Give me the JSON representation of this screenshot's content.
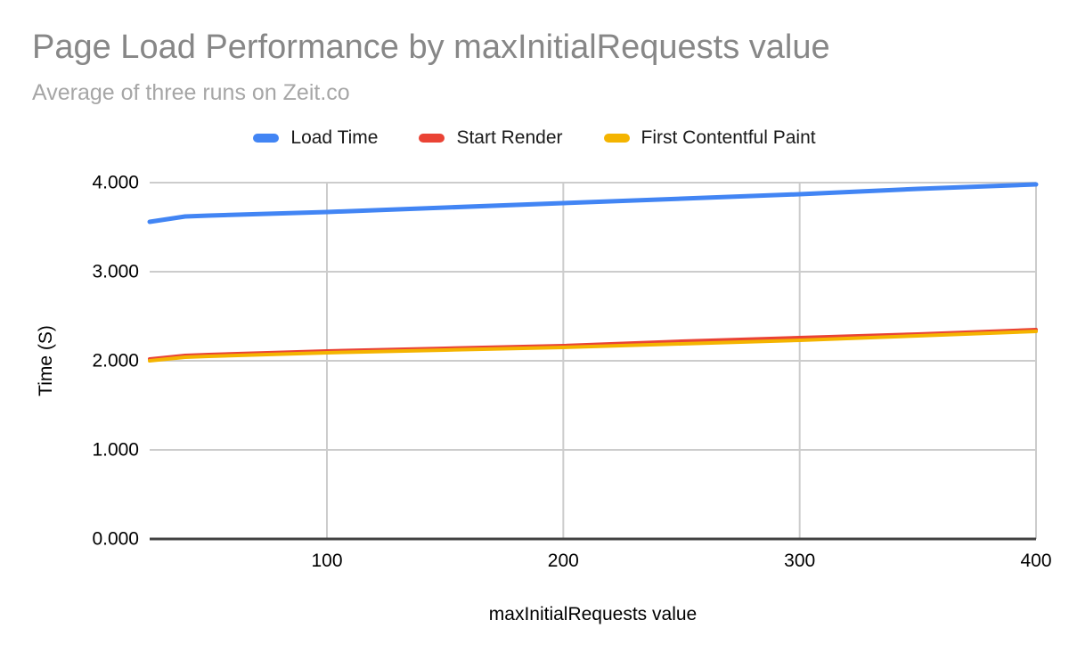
{
  "chart_data": {
    "type": "line",
    "title": "Page Load Performance by maxInitialRequests value",
    "subtitle": "Average of three runs on Zeit.co",
    "xlabel": "maxInitialRequests value",
    "ylabel": "Time (S)",
    "xlim": [
      25,
      400
    ],
    "ylim": [
      0,
      4
    ],
    "grid": true,
    "legend_position": "top",
    "x_ticks": [
      {
        "value": 100,
        "label": "100"
      },
      {
        "value": 200,
        "label": "200"
      },
      {
        "value": 300,
        "label": "300"
      },
      {
        "value": 400,
        "label": "400"
      }
    ],
    "y_ticks": [
      {
        "value": 0,
        "label": "0.000"
      },
      {
        "value": 1,
        "label": "1.000"
      },
      {
        "value": 2,
        "label": "2.000"
      },
      {
        "value": 3,
        "label": "3.000"
      },
      {
        "value": 4,
        "label": "4.000"
      }
    ],
    "x": [
      25,
      40,
      50,
      100,
      150,
      200,
      250,
      300,
      350,
      400
    ],
    "series": [
      {
        "name": "Load Time",
        "color": "#4285F4",
        "stroke_width": 5,
        "values": [
          3.56,
          3.62,
          3.63,
          3.67,
          3.72,
          3.77,
          3.82,
          3.87,
          3.93,
          3.98
        ]
      },
      {
        "name": "Start Render",
        "color": "#EA4335",
        "stroke_width": 4,
        "values": [
          2.02,
          2.06,
          2.07,
          2.11,
          2.14,
          2.17,
          2.22,
          2.26,
          2.3,
          2.35
        ]
      },
      {
        "name": "First Contentful Paint",
        "color": "#F4B400",
        "stroke_width": 4,
        "values": [
          2.0,
          2.04,
          2.05,
          2.09,
          2.12,
          2.15,
          2.19,
          2.23,
          2.28,
          2.33
        ]
      }
    ],
    "colors": {
      "title": "#878787",
      "subtitle": "#a6a6a6",
      "gridline": "#cccccc",
      "axis_line": "#424242",
      "tick_label": "#000000",
      "legend_text": "#1a1a1a"
    }
  }
}
